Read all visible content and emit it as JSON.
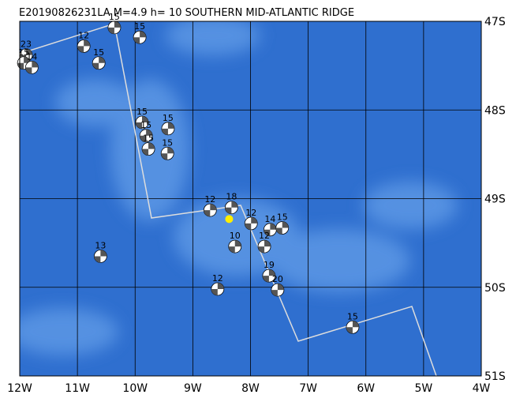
{
  "chart_data": {
    "type": "map",
    "title": "E20190826231LA M=4.9 h= 10 SOUTHERN MID-ATLANTIC RIDGE",
    "xlim": [
      -12,
      -4
    ],
    "ylim": [
      -47,
      -51
    ],
    "xticks": [
      {
        "value": -12,
        "label": "12W"
      },
      {
        "value": -11,
        "label": "11W"
      },
      {
        "value": -10,
        "label": "10W"
      },
      {
        "value": -9,
        "label": "9W"
      },
      {
        "value": -8,
        "label": "8W"
      },
      {
        "value": -7,
        "label": "7W"
      },
      {
        "value": -6,
        "label": "6W"
      },
      {
        "value": -5,
        "label": "5W"
      },
      {
        "value": -4,
        "label": "4W"
      }
    ],
    "yticks": [
      {
        "value": -47,
        "label": "47S"
      },
      {
        "value": -48,
        "label": "48S"
      },
      {
        "value": -49,
        "label": "49S"
      },
      {
        "value": -50,
        "label": "50S"
      },
      {
        "value": -51,
        "label": "51S"
      }
    ],
    "epicenter": {
      "lon": -8.37,
      "lat": -49.23,
      "color": "#ffee00"
    },
    "events": [
      {
        "lon": -11.89,
        "lat": -47.38,
        "depth": 23
      },
      {
        "lon": -11.93,
        "lat": -47.47,
        "depth": 15
      },
      {
        "lon": -11.79,
        "lat": -47.52,
        "depth": 14
      },
      {
        "lon": -10.89,
        "lat": -47.28,
        "depth": 12
      },
      {
        "lon": -10.63,
        "lat": -47.47,
        "depth": 15
      },
      {
        "lon": -10.36,
        "lat": -47.07,
        "depth": 15
      },
      {
        "lon": -9.92,
        "lat": -47.18,
        "depth": 15
      },
      {
        "lon": -9.88,
        "lat": -48.14,
        "depth": 15
      },
      {
        "lon": -9.43,
        "lat": -48.21,
        "depth": 15
      },
      {
        "lon": -9.81,
        "lat": -48.29,
        "depth": 15
      },
      {
        "lon": -9.77,
        "lat": -48.44,
        "depth": 15
      },
      {
        "lon": -9.44,
        "lat": -48.49,
        "depth": 15
      },
      {
        "lon": -8.7,
        "lat": -49.13,
        "depth": 12
      },
      {
        "lon": -8.33,
        "lat": -49.1,
        "depth": 18
      },
      {
        "lon": -7.99,
        "lat": -49.28,
        "depth": 12
      },
      {
        "lon": -7.66,
        "lat": -49.35,
        "depth": 14
      },
      {
        "lon": -7.45,
        "lat": -49.33,
        "depth": 15
      },
      {
        "lon": -8.27,
        "lat": -49.54,
        "depth": 10
      },
      {
        "lon": -10.6,
        "lat": -49.65,
        "depth": 13
      },
      {
        "lon": -7.76,
        "lat": -49.54,
        "depth": 12
      },
      {
        "lon": -7.68,
        "lat": -49.87,
        "depth": 19
      },
      {
        "lon": -7.53,
        "lat": -50.03,
        "depth": 20
      },
      {
        "lon": -8.57,
        "lat": -50.02,
        "depth": 12
      },
      {
        "lon": -6.23,
        "lat": -50.45,
        "depth": 15
      }
    ]
  }
}
